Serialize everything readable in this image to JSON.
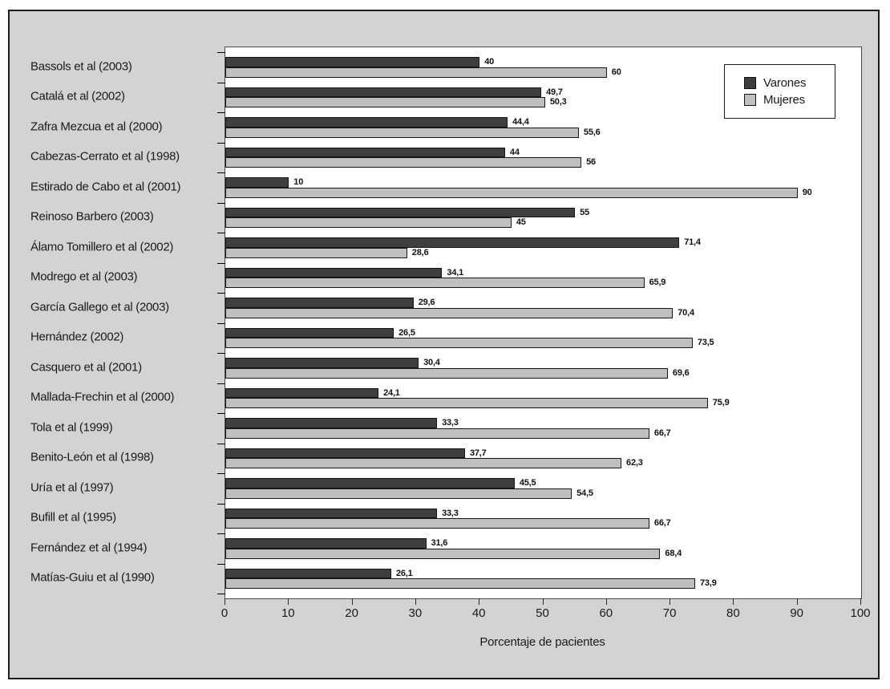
{
  "figure": {
    "background_color": "#d3d3d4",
    "plot_background_color": "#ffffff",
    "border_color": "#1c1c1c"
  },
  "legend": {
    "items": [
      {
        "label": "Varones",
        "color": "#3f3f3f"
      },
      {
        "label": "Mujeres",
        "color": "#bfbfbf"
      }
    ]
  },
  "chart_data": {
    "type": "bar",
    "orientation": "horizontal",
    "title": "",
    "xlabel": "Porcentaje de pacientes",
    "ylabel": "",
    "xlim": [
      0,
      100
    ],
    "xticks": [
      0,
      10,
      20,
      30,
      40,
      50,
      60,
      70,
      80,
      90,
      100
    ],
    "grid": false,
    "legend_position": "top-right",
    "value_labels_shown": true,
    "decimal_separator": ",",
    "categories": [
      "Bassols et al (2003)",
      "Catalá et al (2002)",
      "Zafra Mezcua et al (2000)",
      "Cabezas-Cerrato et al (1998)",
      "Estirado de Cabo et al (2001)",
      "Reinoso Barbero (2003)",
      "Álamo Tomillero et al (2002)",
      "Modrego et al (2003)",
      "García Gallego et al (2003)",
      "Hernández (2002)",
      "Casquero et al (2001)",
      "Mallada-Frechin et al (2000)",
      "Tola et al (1999)",
      "Benito-León et al (1998)",
      "Uría et al (1997)",
      "Bufill et al (1995)",
      "Fernández et al (1994)",
      "Matías-Guiu et al (1990)"
    ],
    "series": [
      {
        "name": "Varones",
        "color": "#3f3f3f",
        "values": [
          40,
          49.7,
          44.4,
          44,
          10,
          55,
          71.4,
          34.1,
          29.6,
          26.5,
          30.4,
          24.1,
          33.3,
          37.7,
          45.5,
          33.3,
          31.6,
          26.1
        ],
        "labels": [
          "40",
          "49,7",
          "44,4",
          "44",
          "10",
          "55",
          "71,4",
          "34,1",
          "29,6",
          "26,5",
          "30,4",
          "24,1",
          "33,3",
          "37,7",
          "45,5",
          "33,3",
          "31,6",
          "26,1"
        ]
      },
      {
        "name": "Mujeres",
        "color": "#bfbfbf",
        "values": [
          60,
          50.3,
          55.6,
          56,
          90,
          45,
          28.6,
          65.9,
          70.4,
          73.5,
          69.6,
          75.9,
          66.7,
          62.3,
          54.5,
          66.7,
          68.4,
          73.9
        ],
        "labels": [
          "60",
          "50,3",
          "55,6",
          "56",
          "90",
          "45",
          "28,6",
          "65,9",
          "70,4",
          "73,5",
          "69,6",
          "75,9",
          "66,7",
          "62,3",
          "54,5",
          "66,7",
          "68,4",
          "73,9"
        ]
      }
    ]
  }
}
